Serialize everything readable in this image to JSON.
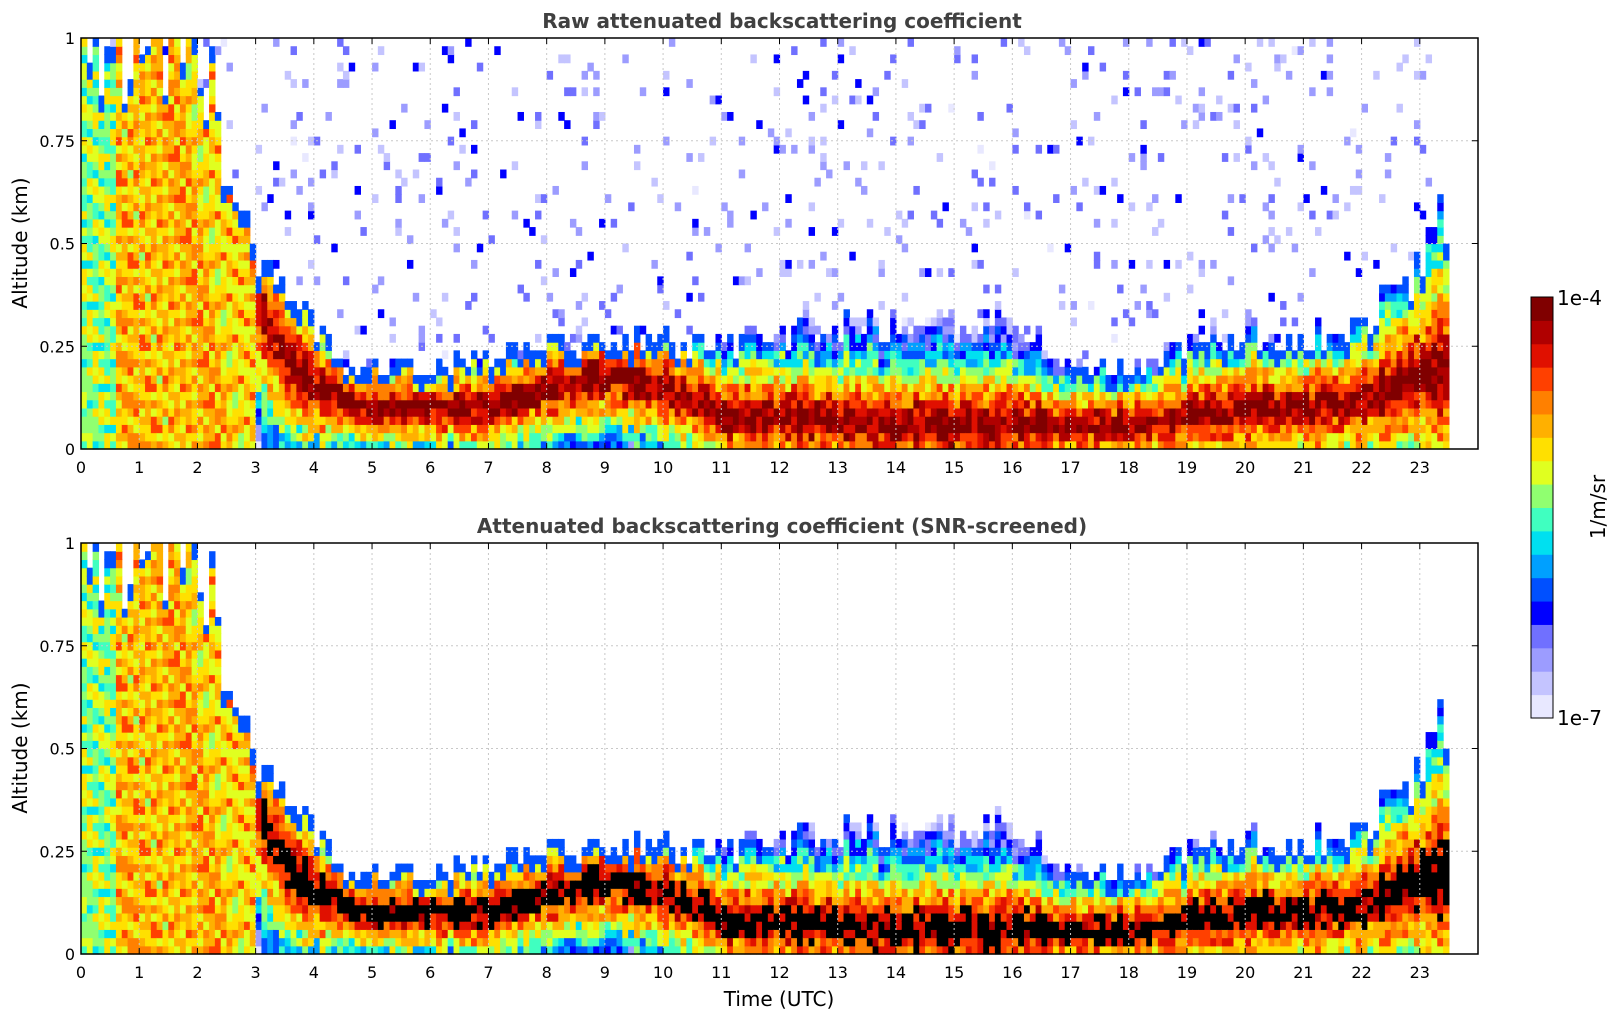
{
  "chart_data": [
    {
      "type": "heatmap",
      "title": "Raw attenuated backscattering coefficient",
      "xlabel": "",
      "ylabel": "Altitude (km)",
      "xlim": [
        0,
        24
      ],
      "ylim": [
        0,
        1
      ],
      "x_ticks": [
        "0",
        "1",
        "2",
        "3",
        "4",
        "5",
        "6",
        "7",
        "8",
        "9",
        "10",
        "11",
        "12",
        "13",
        "14",
        "15",
        "16",
        "17",
        "18",
        "19",
        "20",
        "21",
        "22",
        "23"
      ],
      "y_ticks": [
        "0",
        "0.25",
        "0.5",
        "0.75",
        "1"
      ],
      "grid": true,
      "data_end_hour": 23.5,
      "colorbar": {
        "label": "1/m/sr",
        "min_label": "1e-7",
        "max_label": "1e-4",
        "min": 1e-07,
        "max": 0.0001,
        "scale": "log",
        "colormap": "jet-like"
      },
      "profile": {
        "hours": [
          0,
          0.5,
          1,
          1.5,
          2,
          2.5,
          3,
          3.5,
          4,
          4.5,
          5,
          6,
          7,
          8,
          9,
          10,
          11,
          12,
          13,
          14,
          15,
          16,
          17,
          18,
          19,
          20,
          21,
          22,
          23,
          23.5
        ],
        "layer_top_km": [
          1,
          1,
          0.95,
          1,
          0.95,
          0.7,
          0.45,
          0.35,
          0.3,
          0.22,
          0.2,
          0.2,
          0.22,
          0.25,
          0.27,
          0.26,
          0.25,
          0.28,
          0.3,
          0.3,
          0.3,
          0.32,
          0.2,
          0.2,
          0.25,
          0.28,
          0.28,
          0.3,
          0.45,
          0.6
        ],
        "max_backscatter_altitude_km": [
          0.9,
          0.9,
          0.8,
          0.9,
          0.85,
          0.6,
          0.35,
          0.22,
          0.15,
          0.12,
          0.1,
          0.1,
          0.1,
          0.15,
          0.18,
          0.15,
          0.08,
          0.08,
          0.07,
          0.06,
          0.06,
          0.06,
          0.06,
          0.06,
          0.08,
          0.1,
          0.1,
          0.12,
          0.18,
          0.2
        ]
      }
    },
    {
      "type": "heatmap",
      "title": "Attenuated backscattering coefficient (SNR-screened)",
      "xlabel": "Time (UTC)",
      "ylabel": "Altitude (km)",
      "xlim": [
        0,
        24
      ],
      "ylim": [
        0,
        1
      ],
      "x_ticks": [
        "0",
        "1",
        "2",
        "3",
        "4",
        "5",
        "6",
        "7",
        "8",
        "9",
        "10",
        "11",
        "12",
        "13",
        "14",
        "15",
        "16",
        "17",
        "18",
        "19",
        "20",
        "21",
        "22",
        "23"
      ],
      "y_ticks": [
        "0",
        "0.25",
        "0.5",
        "0.75",
        "1"
      ],
      "grid": true,
      "data_end_hour": 23.5,
      "saturated_color": "#000000",
      "profile": {
        "hours": [
          0,
          0.5,
          1,
          1.5,
          2,
          2.5,
          3,
          3.5,
          4,
          4.5,
          5,
          6,
          7,
          8,
          9,
          10,
          11,
          12,
          13,
          14,
          15,
          16,
          17,
          18,
          19,
          20,
          21,
          22,
          23,
          23.5
        ],
        "layer_top_km": [
          1,
          1,
          0.95,
          1,
          0.95,
          0.7,
          0.45,
          0.35,
          0.3,
          0.22,
          0.2,
          0.2,
          0.22,
          0.25,
          0.27,
          0.26,
          0.25,
          0.28,
          0.3,
          0.3,
          0.3,
          0.32,
          0.2,
          0.2,
          0.25,
          0.28,
          0.28,
          0.3,
          0.45,
          0.6
        ],
        "max_backscatter_altitude_km": [
          0.9,
          0.9,
          0.8,
          0.9,
          0.85,
          0.6,
          0.35,
          0.22,
          0.15,
          0.12,
          0.1,
          0.1,
          0.1,
          0.15,
          0.18,
          0.15,
          0.08,
          0.08,
          0.07,
          0.06,
          0.06,
          0.06,
          0.06,
          0.06,
          0.08,
          0.1,
          0.1,
          0.12,
          0.18,
          0.2
        ]
      }
    }
  ],
  "colors": {
    "jet": [
      "#e8e8ff",
      "#c4c4ff",
      "#9c9cff",
      "#7070ff",
      "#0000ff",
      "#0050ff",
      "#00a0ff",
      "#00e0f0",
      "#40ffc0",
      "#90ff70",
      "#e0ff20",
      "#ffe000",
      "#ffb000",
      "#ff8000",
      "#ff4000",
      "#e01000",
      "#b00000",
      "#800000"
    ],
    "text": "#404040",
    "axis": "#000000",
    "grid": "#c8c8c8"
  }
}
